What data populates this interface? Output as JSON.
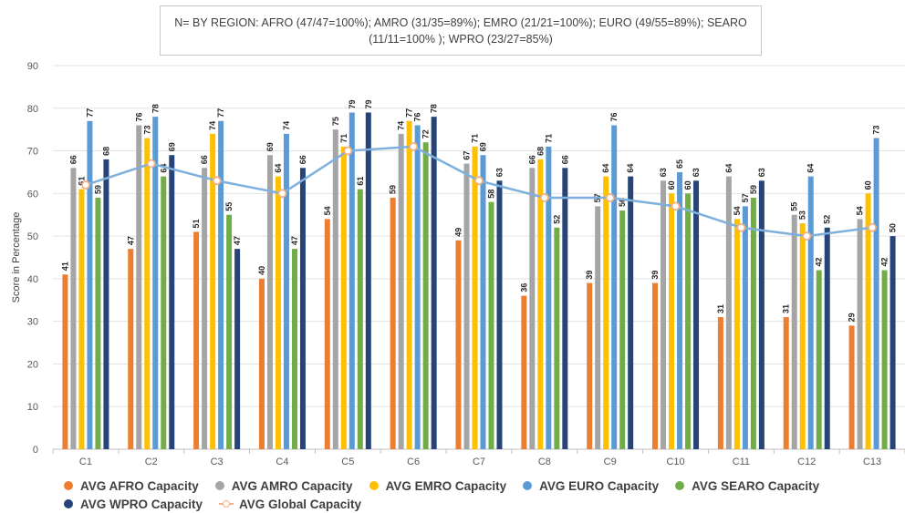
{
  "title_box": {
    "line1": "N= BY REGION: AFRO (47/47=100%); AMRO (31/35=89%); EMRO (21/21=100%); EURO (49/55=89%); SEARO",
    "line2": "(11/11=100% ); WPRO (23/27=85%)"
  },
  "chart_data": {
    "type": "bar",
    "xlabel": "",
    "ylabel": "Score in Percentage",
    "ylim": [
      0,
      90
    ],
    "yticks": [
      0,
      10,
      20,
      30,
      40,
      50,
      60,
      70,
      80,
      90
    ],
    "grid": true,
    "legend_position": "bottom",
    "categories": [
      "C1",
      "C2",
      "C3",
      "C4",
      "C5",
      "C6",
      "C7",
      "C8",
      "C9",
      "C10",
      "C11",
      "C12",
      "C13"
    ],
    "series": [
      {
        "name": "AVG AFRO Capacity",
        "color": "#ed7d31",
        "type": "bar",
        "values": [
          41,
          47,
          51,
          40,
          54,
          59,
          49,
          36,
          39,
          39,
          31,
          31,
          29
        ]
      },
      {
        "name": "AVG AMRO Capacity",
        "color": "#a5a5a5",
        "type": "bar",
        "values": [
          66,
          76,
          66,
          69,
          75,
          74,
          67,
          66,
          57,
          63,
          64,
          55,
          54
        ]
      },
      {
        "name": "AVG EMRO Capacity",
        "color": "#ffc000",
        "type": "bar",
        "values": [
          61,
          73,
          74,
          64,
          71,
          77,
          71,
          68,
          64,
          60,
          54,
          53,
          60
        ]
      },
      {
        "name": "AVG EURO Capacity",
        "color": "#5b9bd5",
        "type": "bar",
        "values": [
          77,
          78,
          77,
          74,
          79,
          76,
          69,
          71,
          76,
          65,
          57,
          64,
          73
        ]
      },
      {
        "name": "AVG SEARO Capacity",
        "color": "#70ad47",
        "type": "bar",
        "values": [
          59,
          64,
          55,
          47,
          61,
          72,
          58,
          52,
          56,
          60,
          59,
          42,
          42
        ]
      },
      {
        "name": "AVG WPRO Capacity",
        "color": "#264478",
        "type": "bar",
        "values": [
          68,
          69,
          47,
          66,
          79,
          78,
          63,
          66,
          64,
          63,
          63,
          52,
          50
        ]
      },
      {
        "name": "AVG Global Capacity",
        "color": "#7eb0dd",
        "marker_color": "#f4b183",
        "type": "line",
        "values": [
          62,
          67,
          63,
          60,
          70,
          71,
          63,
          59,
          59,
          57,
          52,
          50,
          52
        ]
      }
    ]
  }
}
